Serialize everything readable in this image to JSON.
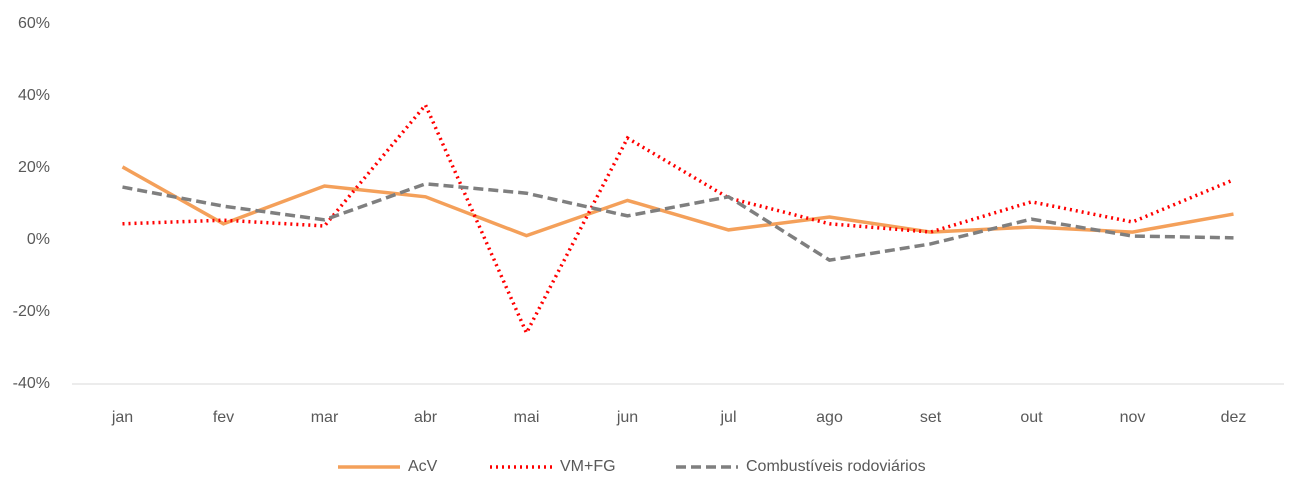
{
  "chart_data": {
    "type": "line",
    "categories": [
      "jan",
      "fev",
      "mar",
      "abr",
      "mai",
      "jun",
      "jul",
      "ago",
      "set",
      "out",
      "nov",
      "dez"
    ],
    "series": [
      {
        "name": "AcV",
        "color": "#f4a05a",
        "dash": "solid",
        "values": [
          20.3,
          4.5,
          15,
          12,
          1.2,
          11,
          2.8,
          6.4,
          2.2,
          3.6,
          2.2,
          7.2
        ]
      },
      {
        "name": "VM+FG",
        "color": "#ff0000",
        "dash": "dot",
        "values": [
          4.5,
          5.5,
          3.9,
          37.5,
          -25.8,
          28.3,
          11.7,
          4.5,
          2.2,
          10.6,
          5,
          16.7
        ]
      },
      {
        "name": "Combustíveis rodoviários",
        "color": "#7f7f7f",
        "dash": "dash",
        "values": [
          14.7,
          9.4,
          5.6,
          15.6,
          13,
          6.7,
          12,
          -5.6,
          -1.1,
          5.8,
          1.1,
          0.6
        ]
      }
    ],
    "ylim": [
      -40,
      60
    ],
    "yticks": [
      {
        "value": -40,
        "label": "-40%"
      },
      {
        "value": -20,
        "label": "-20%"
      },
      {
        "value": 0,
        "label": "0%"
      },
      {
        "value": 20,
        "label": "20%"
      },
      {
        "value": 40,
        "label": "40%"
      },
      {
        "value": 60,
        "label": "60%"
      }
    ],
    "grid": false,
    "legend": "bottom"
  }
}
